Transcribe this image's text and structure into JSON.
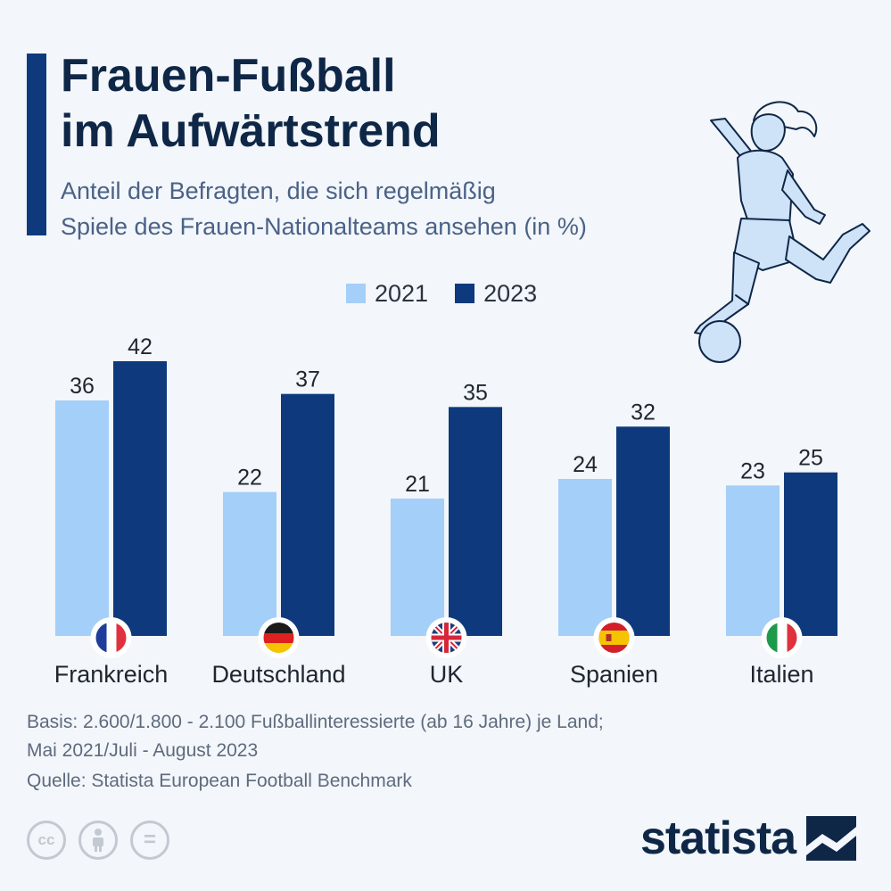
{
  "title": {
    "line1": "Frauen-Fußball",
    "line2": "im Aufwärtstrend"
  },
  "subtitle": {
    "line1": "Anteil der Befragten, die sich regelmäßig",
    "line2": "Spiele des Frauen-Nationalteams ansehen (in %)"
  },
  "colors": {
    "accent": "#0e3a7d",
    "series_2021": "#a3cff8",
    "series_2023": "#0e3a7d",
    "title": "#0f2747"
  },
  "chart_data": {
    "type": "bar",
    "categories": [
      "Frankreich",
      "Deutschland",
      "UK",
      "Spanien",
      "Italien"
    ],
    "flags": [
      "france-flag-icon",
      "germany-flag-icon",
      "uk-flag-icon",
      "spain-flag-icon",
      "italy-flag-icon"
    ],
    "series": [
      {
        "name": "2021",
        "color": "#a3cff8",
        "values": [
          36,
          22,
          21,
          24,
          23
        ]
      },
      {
        "name": "2023",
        "color": "#0e3a7d",
        "values": [
          42,
          37,
          35,
          32,
          25
        ]
      }
    ],
    "ylim": [
      0,
      42
    ],
    "grid": false,
    "legend_position": "top"
  },
  "footnote": {
    "basis_line1": "Basis: 2.600/1.800 - 2.100 Fußballinteressierte (ab 16 Jahre) je Land;",
    "basis_line2": "Mai 2021/Juli - August 2023",
    "source": "Quelle: Statista European Football Benchmark"
  },
  "license_icons": [
    "cc-icon",
    "attribution-icon",
    "no-derivatives-icon"
  ],
  "license_labels": {
    "cc": "cc",
    "nd": "="
  },
  "brand": {
    "name": "statista",
    "logo_icon": "statista-logo-icon"
  }
}
